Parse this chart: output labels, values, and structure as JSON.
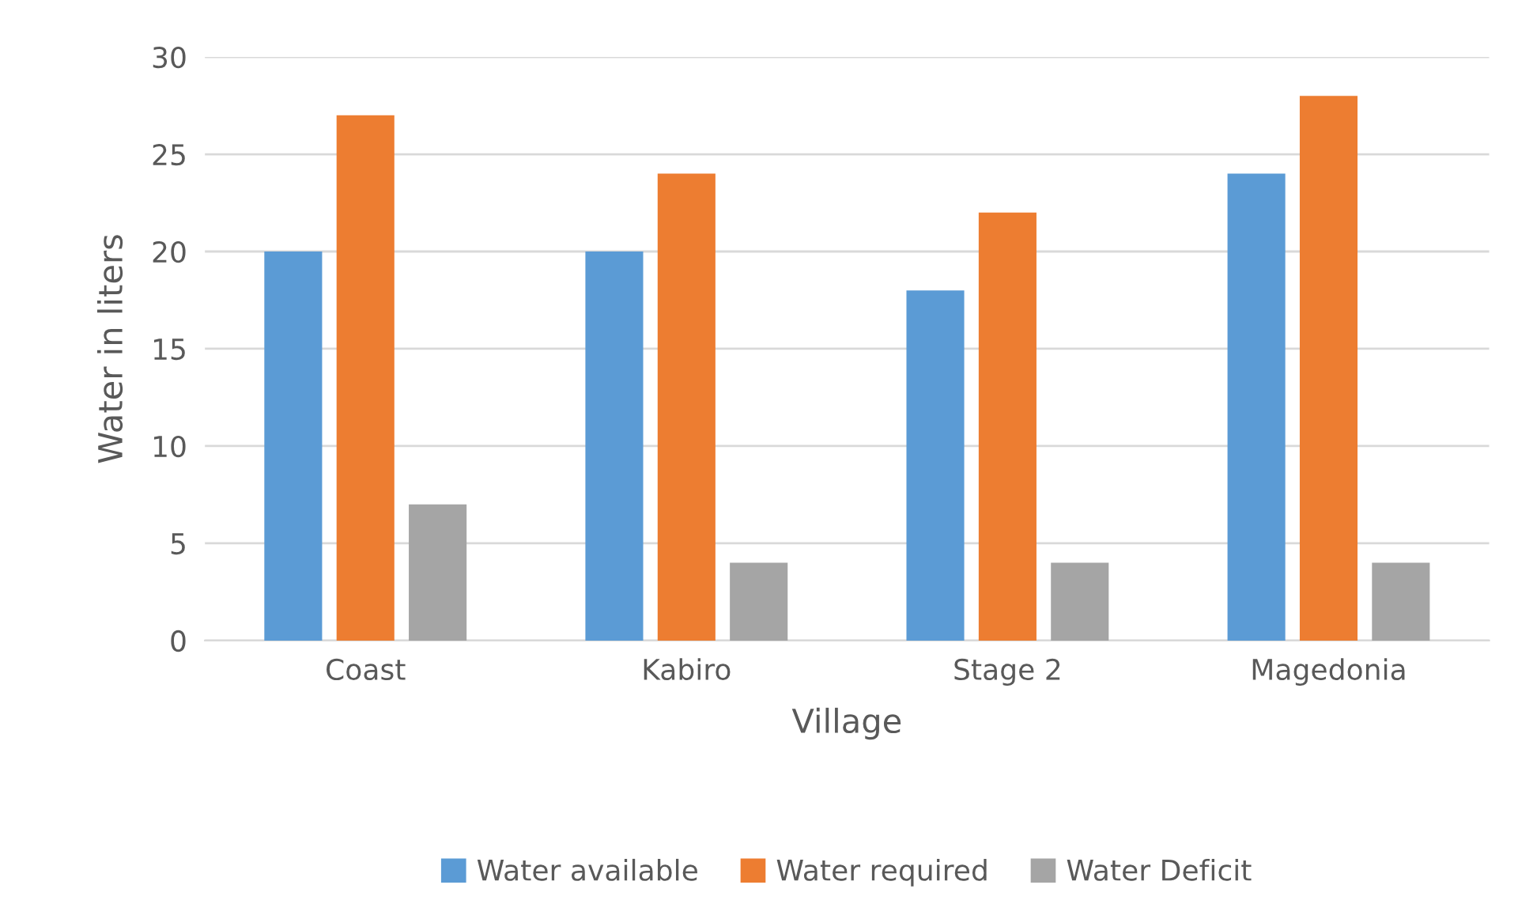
{
  "chart_data": {
    "type": "bar",
    "xlabel": "Village",
    "ylabel": "Water in liters",
    "categories": [
      "Coast",
      "Kabiro",
      "Stage 2",
      "Magedonia"
    ],
    "series": [
      {
        "name": "Water available",
        "color": "#5b9bd5",
        "values": [
          20,
          20,
          18,
          24
        ]
      },
      {
        "name": "Water required",
        "color": "#ed7d31",
        "values": [
          27,
          24,
          22,
          28
        ]
      },
      {
        "name": "Water Deficit",
        "color": "#a5a5a5",
        "values": [
          7,
          4,
          4,
          4
        ]
      }
    ],
    "ylim": [
      0,
      30
    ],
    "yticks": [
      0,
      5,
      10,
      15,
      20,
      25,
      30
    ],
    "grid": "y",
    "legend": "bottom"
  }
}
